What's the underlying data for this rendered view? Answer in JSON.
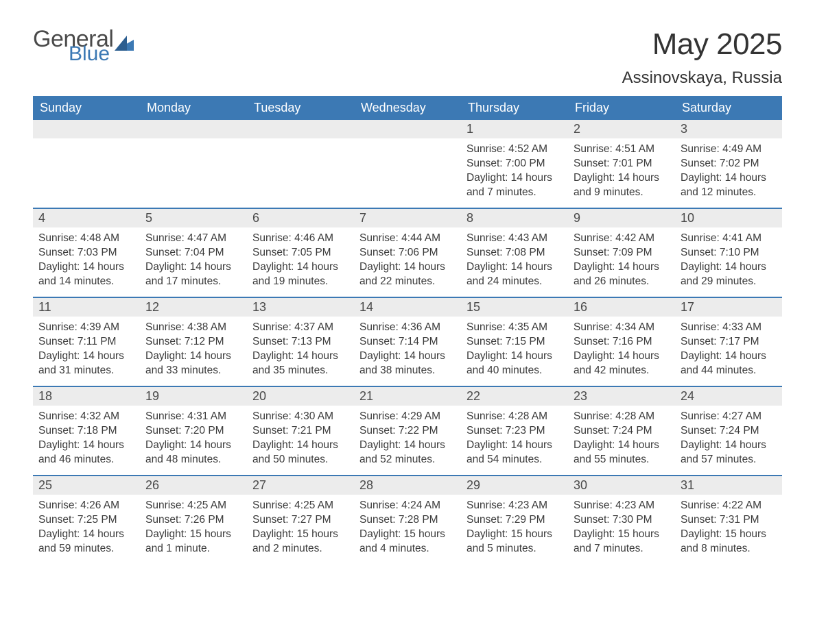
{
  "brand": {
    "name_main": "General",
    "name_sub": "Blue",
    "color_main": "#4a4a4a",
    "color_sub": "#3c79b4",
    "logo_shape_color": "#3c79b4"
  },
  "header": {
    "title": "May 2025",
    "location": "Assinovskaya, Russia",
    "title_fontsize": 44,
    "location_fontsize": 24,
    "text_color": "#333333"
  },
  "calendar": {
    "header_bg": "#3c79b4",
    "header_text_color": "#ffffff",
    "row_divider_color": "#3c79b4",
    "daynum_bg": "#ececec",
    "daynum_text_color": "#4a4a4a",
    "body_text_color": "#3a3a3a",
    "background_color": "#ffffff",
    "columns": [
      "Sunday",
      "Monday",
      "Tuesday",
      "Wednesday",
      "Thursday",
      "Friday",
      "Saturday"
    ],
    "weeks": [
      [
        null,
        null,
        null,
        null,
        {
          "n": "1",
          "sr": "Sunrise: 4:52 AM",
          "ss": "Sunset: 7:00 PM",
          "dl": "Daylight: 14 hours and 7 minutes."
        },
        {
          "n": "2",
          "sr": "Sunrise: 4:51 AM",
          "ss": "Sunset: 7:01 PM",
          "dl": "Daylight: 14 hours and 9 minutes."
        },
        {
          "n": "3",
          "sr": "Sunrise: 4:49 AM",
          "ss": "Sunset: 7:02 PM",
          "dl": "Daylight: 14 hours and 12 minutes."
        }
      ],
      [
        {
          "n": "4",
          "sr": "Sunrise: 4:48 AM",
          "ss": "Sunset: 7:03 PM",
          "dl": "Daylight: 14 hours and 14 minutes."
        },
        {
          "n": "5",
          "sr": "Sunrise: 4:47 AM",
          "ss": "Sunset: 7:04 PM",
          "dl": "Daylight: 14 hours and 17 minutes."
        },
        {
          "n": "6",
          "sr": "Sunrise: 4:46 AM",
          "ss": "Sunset: 7:05 PM",
          "dl": "Daylight: 14 hours and 19 minutes."
        },
        {
          "n": "7",
          "sr": "Sunrise: 4:44 AM",
          "ss": "Sunset: 7:06 PM",
          "dl": "Daylight: 14 hours and 22 minutes."
        },
        {
          "n": "8",
          "sr": "Sunrise: 4:43 AM",
          "ss": "Sunset: 7:08 PM",
          "dl": "Daylight: 14 hours and 24 minutes."
        },
        {
          "n": "9",
          "sr": "Sunrise: 4:42 AM",
          "ss": "Sunset: 7:09 PM",
          "dl": "Daylight: 14 hours and 26 minutes."
        },
        {
          "n": "10",
          "sr": "Sunrise: 4:41 AM",
          "ss": "Sunset: 7:10 PM",
          "dl": "Daylight: 14 hours and 29 minutes."
        }
      ],
      [
        {
          "n": "11",
          "sr": "Sunrise: 4:39 AM",
          "ss": "Sunset: 7:11 PM",
          "dl": "Daylight: 14 hours and 31 minutes."
        },
        {
          "n": "12",
          "sr": "Sunrise: 4:38 AM",
          "ss": "Sunset: 7:12 PM",
          "dl": "Daylight: 14 hours and 33 minutes."
        },
        {
          "n": "13",
          "sr": "Sunrise: 4:37 AM",
          "ss": "Sunset: 7:13 PM",
          "dl": "Daylight: 14 hours and 35 minutes."
        },
        {
          "n": "14",
          "sr": "Sunrise: 4:36 AM",
          "ss": "Sunset: 7:14 PM",
          "dl": "Daylight: 14 hours and 38 minutes."
        },
        {
          "n": "15",
          "sr": "Sunrise: 4:35 AM",
          "ss": "Sunset: 7:15 PM",
          "dl": "Daylight: 14 hours and 40 minutes."
        },
        {
          "n": "16",
          "sr": "Sunrise: 4:34 AM",
          "ss": "Sunset: 7:16 PM",
          "dl": "Daylight: 14 hours and 42 minutes."
        },
        {
          "n": "17",
          "sr": "Sunrise: 4:33 AM",
          "ss": "Sunset: 7:17 PM",
          "dl": "Daylight: 14 hours and 44 minutes."
        }
      ],
      [
        {
          "n": "18",
          "sr": "Sunrise: 4:32 AM",
          "ss": "Sunset: 7:18 PM",
          "dl": "Daylight: 14 hours and 46 minutes."
        },
        {
          "n": "19",
          "sr": "Sunrise: 4:31 AM",
          "ss": "Sunset: 7:20 PM",
          "dl": "Daylight: 14 hours and 48 minutes."
        },
        {
          "n": "20",
          "sr": "Sunrise: 4:30 AM",
          "ss": "Sunset: 7:21 PM",
          "dl": "Daylight: 14 hours and 50 minutes."
        },
        {
          "n": "21",
          "sr": "Sunrise: 4:29 AM",
          "ss": "Sunset: 7:22 PM",
          "dl": "Daylight: 14 hours and 52 minutes."
        },
        {
          "n": "22",
          "sr": "Sunrise: 4:28 AM",
          "ss": "Sunset: 7:23 PM",
          "dl": "Daylight: 14 hours and 54 minutes."
        },
        {
          "n": "23",
          "sr": "Sunrise: 4:28 AM",
          "ss": "Sunset: 7:24 PM",
          "dl": "Daylight: 14 hours and 55 minutes."
        },
        {
          "n": "24",
          "sr": "Sunrise: 4:27 AM",
          "ss": "Sunset: 7:24 PM",
          "dl": "Daylight: 14 hours and 57 minutes."
        }
      ],
      [
        {
          "n": "25",
          "sr": "Sunrise: 4:26 AM",
          "ss": "Sunset: 7:25 PM",
          "dl": "Daylight: 14 hours and 59 minutes."
        },
        {
          "n": "26",
          "sr": "Sunrise: 4:25 AM",
          "ss": "Sunset: 7:26 PM",
          "dl": "Daylight: 15 hours and 1 minute."
        },
        {
          "n": "27",
          "sr": "Sunrise: 4:25 AM",
          "ss": "Sunset: 7:27 PM",
          "dl": "Daylight: 15 hours and 2 minutes."
        },
        {
          "n": "28",
          "sr": "Sunrise: 4:24 AM",
          "ss": "Sunset: 7:28 PM",
          "dl": "Daylight: 15 hours and 4 minutes."
        },
        {
          "n": "29",
          "sr": "Sunrise: 4:23 AM",
          "ss": "Sunset: 7:29 PM",
          "dl": "Daylight: 15 hours and 5 minutes."
        },
        {
          "n": "30",
          "sr": "Sunrise: 4:23 AM",
          "ss": "Sunset: 7:30 PM",
          "dl": "Daylight: 15 hours and 7 minutes."
        },
        {
          "n": "31",
          "sr": "Sunrise: 4:22 AM",
          "ss": "Sunset: 7:31 PM",
          "dl": "Daylight: 15 hours and 8 minutes."
        }
      ]
    ]
  }
}
